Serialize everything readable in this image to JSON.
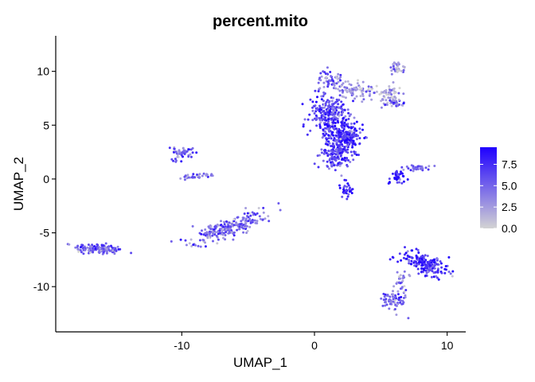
{
  "chart_data": {
    "type": "scatter",
    "title": "percent.mito",
    "xlabel": "UMAP_1",
    "ylabel": "UMAP_2",
    "xlim": [
      -19.5,
      11.4
    ],
    "ylim": [
      -14.2,
      13.3
    ],
    "x_ticks": [
      -10,
      0,
      10
    ],
    "y_ticks": [
      10,
      5,
      0,
      -5,
      -10
    ],
    "grid": false,
    "color_scale": {
      "low_color": "#d3d3d3",
      "high_color": "#1f00ff",
      "min": 0,
      "max": 9.5,
      "ticks": [
        "7.5",
        "5.0",
        "2.5",
        "0.0"
      ],
      "tick_values": [
        7.5,
        5.0,
        2.5,
        0.0
      ],
      "legend_position": "right"
    },
    "clusters": [
      {
        "center": [
          -16.3,
          -6.5
        ],
        "spread": [
          1.2,
          0.32
        ],
        "angle": -0.08,
        "count": 160,
        "mean": 5.5
      },
      {
        "center": [
          -10.0,
          2.3
        ],
        "spread": [
          0.55,
          0.55
        ],
        "angle": -0.9,
        "count": 50,
        "mean": 5.0
      },
      {
        "center": [
          -8.7,
          0.3
        ],
        "spread": [
          0.9,
          0.15
        ],
        "angle": 0.15,
        "count": 35,
        "mean": 3.8
      },
      {
        "center": [
          -6.6,
          -4.6
        ],
        "spread": [
          2.0,
          0.55
        ],
        "angle": 0.42,
        "count": 230,
        "mean": 4.8
      },
      {
        "center": [
          1.2,
          6.0
        ],
        "spread": [
          1.1,
          1.3
        ],
        "angle": 0.0,
        "count": 240,
        "mean": 6.5
      },
      {
        "center": [
          2.3,
          4.0
        ],
        "spread": [
          0.9,
          0.9
        ],
        "angle": 0.0,
        "count": 220,
        "mean": 7.8
      },
      {
        "center": [
          1.6,
          2.3
        ],
        "spread": [
          0.8,
          0.9
        ],
        "angle": 0.0,
        "count": 140,
        "mean": 6.5
      },
      {
        "center": [
          1.2,
          9.2
        ],
        "spread": [
          0.6,
          0.6
        ],
        "angle": 0.0,
        "count": 55,
        "mean": 4.5
      },
      {
        "center": [
          3.2,
          8.2
        ],
        "spread": [
          1.0,
          0.45
        ],
        "angle": 0.0,
        "count": 70,
        "mean": 3.0
      },
      {
        "center": [
          2.4,
          -0.8
        ],
        "spread": [
          0.4,
          0.6
        ],
        "angle": 0.0,
        "count": 30,
        "mean": 7.0
      },
      {
        "center": [
          5.6,
          7.8
        ],
        "spread": [
          0.6,
          0.6
        ],
        "angle": 0.0,
        "count": 70,
        "mean": 2.0
      },
      {
        "center": [
          6.2,
          10.3
        ],
        "spread": [
          0.4,
          0.4
        ],
        "angle": 0.0,
        "count": 35,
        "mean": 3.0
      },
      {
        "center": [
          6.3,
          7.1
        ],
        "spread": [
          0.4,
          0.3
        ],
        "angle": 0.0,
        "count": 20,
        "mean": 5.0
      },
      {
        "center": [
          6.3,
          0.2
        ],
        "spread": [
          0.5,
          0.5
        ],
        "angle": 0.0,
        "count": 40,
        "mean": 8.0
      },
      {
        "center": [
          7.8,
          1.0
        ],
        "spread": [
          0.7,
          0.2
        ],
        "angle": 0.0,
        "count": 30,
        "mean": 5.0
      },
      {
        "center": [
          8.4,
          -7.9
        ],
        "spread": [
          1.3,
          0.6
        ],
        "angle": -0.45,
        "count": 190,
        "mean": 7.2
      },
      {
        "center": [
          6.0,
          -11.3
        ],
        "spread": [
          0.6,
          0.7
        ],
        "angle": 0.0,
        "count": 70,
        "mean": 5.0
      },
      {
        "center": [
          6.6,
          -9.4
        ],
        "spread": [
          0.35,
          0.7
        ],
        "angle": 0.0,
        "count": 25,
        "mean": 3.5
      }
    ]
  }
}
